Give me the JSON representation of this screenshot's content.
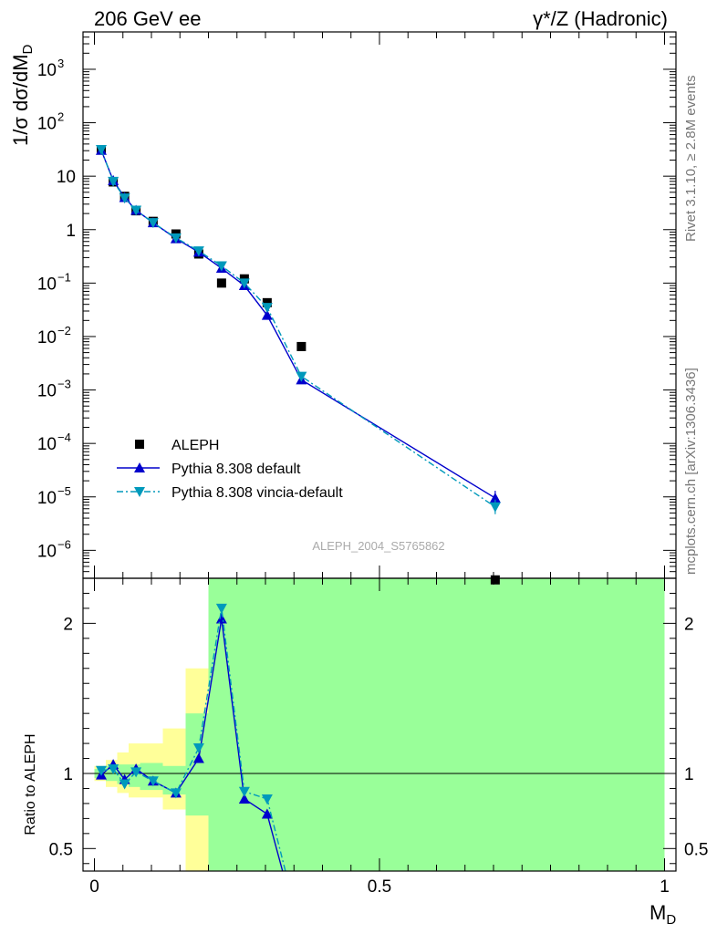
{
  "header": {
    "left": "206 GeV ee",
    "right": "γ*/Z (Hadronic)"
  },
  "side_labels": {
    "rivet": "Rivet 3.1.10, ≥ 2.8M events",
    "mcplots": "mcplots.cern.ch [arXiv:1306.3436]"
  },
  "watermark": "ALEPH_2004_S5765862",
  "colors": {
    "data": "#000000",
    "pythia_default": "#0000cc",
    "pythia_vincia": "#0099bb",
    "band_stat": "#99ff99",
    "band_total": "#ffff99"
  },
  "chart_data": [
    {
      "type": "scatter",
      "panel": "main",
      "ylabel": "1/σ dσ/dMD",
      "yscale": "log",
      "xlim": [
        -0.02,
        1.02
      ],
      "ylim": [
        3e-07,
        5000
      ],
      "yticks": [
        {
          "label": "10",
          "exp": "3",
          "value": 1000
        },
        {
          "label": "10",
          "exp": "2",
          "value": 100
        },
        {
          "label": "10",
          "exp": "",
          "value": 10
        },
        {
          "label": "1",
          "exp": "",
          "value": 1
        },
        {
          "label": "10",
          "exp": "−1",
          "value": 0.1
        },
        {
          "label": "10",
          "exp": "−2",
          "value": 0.01
        },
        {
          "label": "10",
          "exp": "−3",
          "value": 0.001
        },
        {
          "label": "10",
          "exp": "−4",
          "value": 0.0001
        },
        {
          "label": "10",
          "exp": "−5",
          "value": 1e-05
        },
        {
          "label": "10",
          "exp": "−6",
          "value": 1e-06
        }
      ],
      "legend_position": "bottom-left",
      "series": [
        {
          "name": "ALEPH",
          "marker": "square",
          "x": [
            0.012,
            0.033,
            0.053,
            0.073,
            0.103,
            0.143,
            0.183,
            0.223,
            0.263,
            0.303,
            0.363,
            0.703
          ],
          "y": [
            31,
            7.8,
            4.2,
            2.25,
            1.43,
            0.83,
            0.35,
            0.1,
            0.12,
            0.043,
            0.0065,
            2.8e-07
          ]
        },
        {
          "name": "Pythia 8.308 default",
          "marker": "triangle-up",
          "line": "solid",
          "x": [
            0.012,
            0.033,
            0.053,
            0.073,
            0.103,
            0.143,
            0.183,
            0.223,
            0.263,
            0.303,
            0.363,
            0.703
          ],
          "y": [
            30.5,
            8.3,
            4.0,
            2.3,
            1.35,
            0.68,
            0.38,
            0.19,
            0.09,
            0.025,
            0.00155,
            9.5e-06
          ]
        },
        {
          "name": "Pythia 8.308 vincia-default",
          "marker": "triangle-down",
          "line": "dashdot",
          "x": [
            0.012,
            0.033,
            0.053,
            0.073,
            0.103,
            0.143,
            0.183,
            0.223,
            0.263,
            0.303,
            0.363,
            0.703
          ],
          "y": [
            31.5,
            8.0,
            3.9,
            2.3,
            1.35,
            0.7,
            0.4,
            0.21,
            0.1,
            0.035,
            0.0018,
            6.5e-06
          ]
        }
      ]
    },
    {
      "type": "line",
      "panel": "ratio",
      "ylabel": "Ratio to ALEPH",
      "xlabel": "MD",
      "xlim": [
        -0.02,
        1.02
      ],
      "ylim": [
        0.35,
        2.3
      ],
      "xticks": [
        {
          "label": "0",
          "value": 0
        },
        {
          "label": "0.5",
          "value": 0.5
        },
        {
          "label": "1",
          "value": 1
        }
      ],
      "yticks": [
        {
          "label": "0.5",
          "value": 0.5
        },
        {
          "label": "1",
          "value": 1
        },
        {
          "label": "2",
          "value": 2
        }
      ],
      "reference_line": 1,
      "bands": {
        "bins": [
          [
            0,
            0.02
          ],
          [
            0.02,
            0.04
          ],
          [
            0.04,
            0.06
          ],
          [
            0.06,
            0.08
          ],
          [
            0.08,
            0.12
          ],
          [
            0.12,
            0.16
          ],
          [
            0.16,
            0.2
          ],
          [
            0.2,
            0.24
          ],
          [
            0.24,
            0.28
          ],
          [
            0.28,
            0.32
          ],
          [
            0.32,
            1.0
          ]
        ],
        "stat": [
          [
            0.97,
            1.03
          ],
          [
            0.95,
            1.05
          ],
          [
            0.93,
            1.06
          ],
          [
            0.91,
            1.06
          ],
          [
            0.89,
            1.07
          ],
          [
            0.86,
            1.05
          ],
          [
            0.72,
            1.4
          ],
          [
            0.2,
            2.3
          ],
          [
            0.2,
            2.3
          ],
          [
            0.2,
            2.3
          ],
          [
            0.2,
            2.3
          ]
        ],
        "total": [
          [
            0.95,
            1.05
          ],
          [
            0.91,
            1.09
          ],
          [
            0.87,
            1.14
          ],
          [
            0.84,
            1.2
          ],
          [
            0.84,
            1.2
          ],
          [
            0.76,
            1.3
          ],
          [
            0.2,
            1.7
          ],
          [
            0.2,
            2.3
          ],
          [
            0.2,
            2.3
          ],
          [
            0.2,
            2.3
          ],
          [
            0.2,
            2.3
          ]
        ]
      },
      "series": [
        {
          "name": "Pythia 8.308 default",
          "x": [
            0.012,
            0.033,
            0.053,
            0.073,
            0.103,
            0.143,
            0.183,
            0.223,
            0.263,
            0.303,
            0.33
          ],
          "y": [
            0.99,
            1.06,
            0.96,
            1.03,
            0.95,
            0.87,
            1.1,
            2.03,
            0.83,
            0.73,
            0.35
          ]
        },
        {
          "name": "Pythia 8.308 vincia-default",
          "x": [
            0.012,
            0.033,
            0.053,
            0.073,
            0.103,
            0.143,
            0.183,
            0.223,
            0.263,
            0.303,
            0.335
          ],
          "y": [
            1.02,
            1.03,
            0.93,
            1.01,
            0.95,
            0.87,
            1.17,
            2.1,
            0.88,
            0.83,
            0.35
          ]
        }
      ]
    }
  ]
}
